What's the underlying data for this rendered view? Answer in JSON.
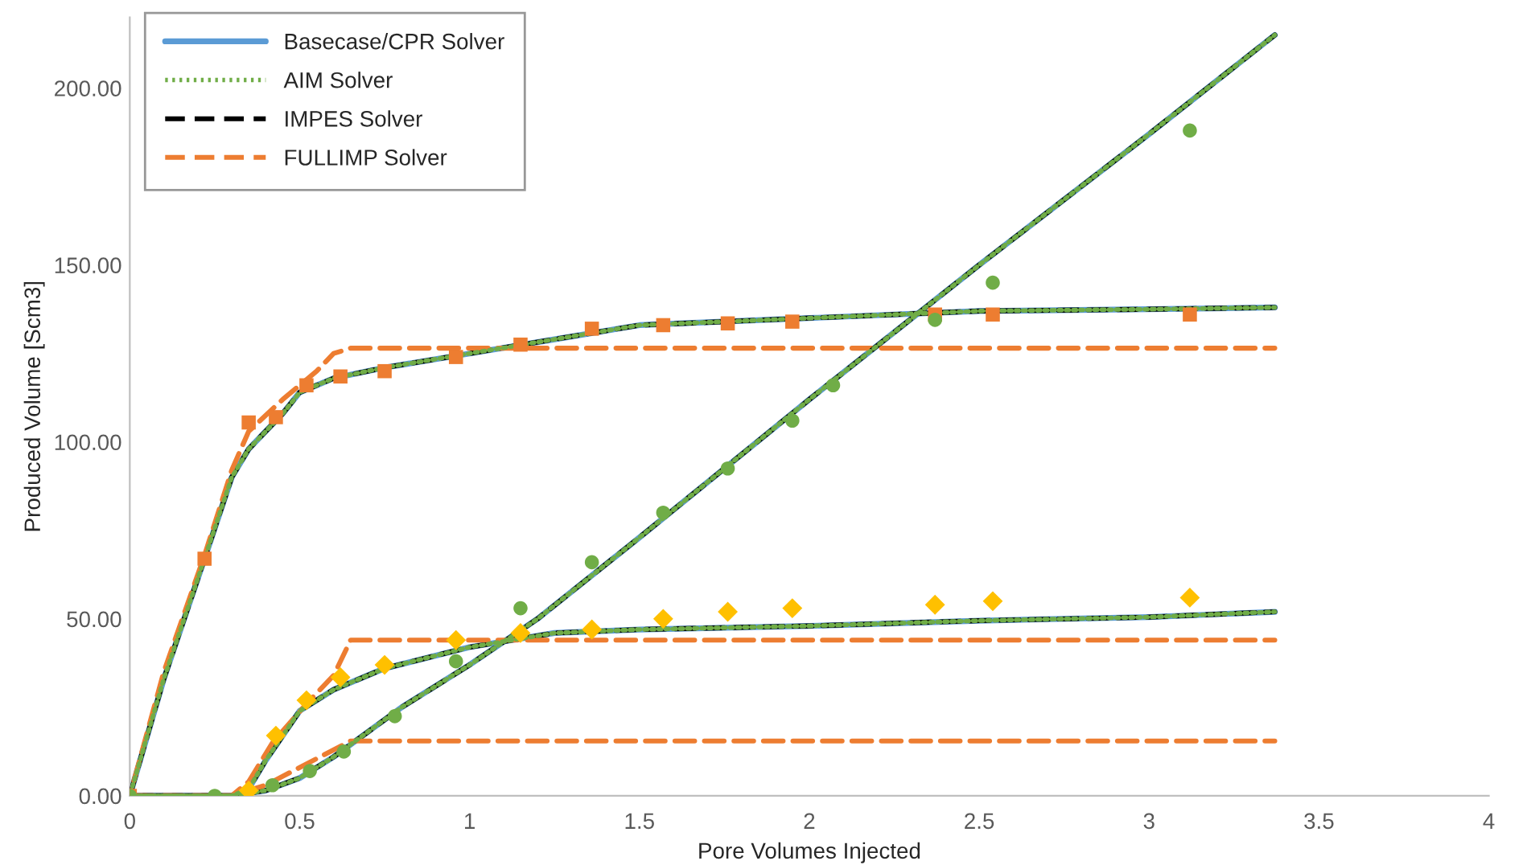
{
  "chart_data": {
    "type": "line",
    "xlabel": "Pore Volumes Injected",
    "ylabel": "Produced Volume [Scm3]",
    "xlim": [
      0,
      4
    ],
    "xticks": [
      0,
      0.5,
      1,
      1.5,
      2,
      2.5,
      3,
      3.5,
      4
    ],
    "ylim": [
      0,
      220
    ],
    "yticks": [
      {
        "value": 0,
        "label": "0.00"
      },
      {
        "value": 50,
        "label": "50.00"
      },
      {
        "value": 100,
        "label": "100.00"
      },
      {
        "value": 150,
        "label": "150.00"
      },
      {
        "value": 200,
        "label": "200.00"
      }
    ],
    "grid": false,
    "legend": "top left",
    "series": [
      {
        "name": "Basecase/CPR Solver",
        "line_style": "solid",
        "color": "#5b9bd5",
        "x": [
          0,
          0.1,
          0.22,
          0.3,
          0.35,
          0.45,
          0.5,
          0.6,
          0.75,
          1.0,
          1.25,
          1.5,
          2.0,
          2.5,
          3.0,
          3.37
        ],
        "values": [
          0,
          33,
          67,
          90,
          98,
          108,
          114,
          118,
          121,
          125,
          129,
          133,
          135,
          137,
          137.5,
          138
        ]
      },
      {
        "name": "AIM Solver",
        "line_style": "dotted",
        "color": "#70ad47",
        "x": [
          0,
          0.1,
          0.22,
          0.3,
          0.35,
          0.45,
          0.5,
          0.6,
          0.75,
          1.0,
          1.25,
          1.5,
          2.0,
          2.5,
          3.0,
          3.37
        ],
        "values": [
          0,
          33,
          67,
          90,
          98,
          108,
          114,
          118,
          121,
          125,
          129,
          133,
          135,
          137,
          137.5,
          138
        ]
      },
      {
        "name": "IMPES Solver",
        "line_style": "dashed",
        "color": "#000000",
        "x": [
          0,
          0.1,
          0.22,
          0.3,
          0.35,
          0.45,
          0.5,
          0.6,
          0.75,
          1.0,
          1.25,
          1.5,
          2.0,
          2.5,
          3.0,
          3.37
        ],
        "values": [
          0,
          33,
          67,
          90,
          98,
          108,
          114,
          118,
          121,
          125,
          129,
          133,
          135,
          137,
          137.5,
          138
        ]
      },
      {
        "name": "FULLIMP Solver",
        "line_style": "dashed",
        "color": "#ed7d31",
        "x": [
          0,
          0.1,
          0.22,
          0.3,
          0.35,
          0.45,
          0.55,
          0.6,
          0.65,
          3.37
        ],
        "values": [
          0,
          35,
          68,
          92,
          103,
          112,
          120,
          125,
          126.5,
          126.5
        ]
      },
      {
        "type": "line",
        "line_style": "solid",
        "color": "#5b9bd5",
        "x": [
          0,
          0.3,
          0.4,
          0.5,
          0.6,
          0.7,
          0.8,
          1.0,
          1.2,
          1.5,
          2.0,
          2.5,
          3.0,
          3.37
        ],
        "values": [
          0,
          0,
          1.5,
          5,
          11,
          18,
          25,
          37,
          50,
          73,
          112,
          150,
          187,
          215
        ]
      },
      {
        "type": "line",
        "line_style": "dotted",
        "color": "#70ad47",
        "x": [
          0,
          0.3,
          0.4,
          0.5,
          0.6,
          0.7,
          0.8,
          1.0,
          1.2,
          1.5,
          2.0,
          2.5,
          3.0,
          3.37
        ],
        "values": [
          0,
          0,
          1.5,
          5,
          11,
          18,
          25,
          37,
          50,
          73,
          112,
          150,
          187,
          215
        ]
      },
      {
        "type": "line",
        "line_style": "dashed",
        "color": "#000000",
        "x": [
          0,
          0.3,
          0.4,
          0.5,
          0.6,
          0.7,
          0.8,
          1.0,
          1.2,
          1.5,
          2.0,
          2.5,
          3.0,
          3.37
        ],
        "values": [
          0,
          0,
          1.5,
          5,
          11,
          18,
          25,
          37,
          50,
          73,
          112,
          150,
          187,
          215
        ]
      },
      {
        "type": "line",
        "line_style": "dashed",
        "color": "#ed7d31",
        "x": [
          0,
          0.3,
          0.4,
          0.5,
          0.6,
          0.65,
          3.37
        ],
        "values": [
          0,
          0,
          3,
          8,
          13,
          15.5,
          15.5
        ]
      },
      {
        "type": "line",
        "line_style": "solid",
        "color": "#5b9bd5",
        "x": [
          0,
          0.3,
          0.35,
          0.4,
          0.5,
          0.6,
          0.75,
          1.0,
          1.25,
          1.5,
          2.0,
          2.5,
          3.0,
          3.37
        ],
        "values": [
          0,
          0,
          2,
          10,
          24,
          30,
          36,
          42,
          46,
          47,
          48,
          49.5,
          50.5,
          52
        ]
      },
      {
        "type": "line",
        "line_style": "dotted",
        "color": "#70ad47",
        "x": [
          0,
          0.3,
          0.35,
          0.4,
          0.5,
          0.6,
          0.75,
          1.0,
          1.25,
          1.5,
          2.0,
          2.5,
          3.0,
          3.37
        ],
        "values": [
          0,
          0,
          2,
          10,
          24,
          30,
          36,
          42,
          46,
          47,
          48,
          49.5,
          50.5,
          52
        ]
      },
      {
        "type": "line",
        "line_style": "dashed",
        "color": "#000000",
        "x": [
          0,
          0.3,
          0.35,
          0.4,
          0.5,
          0.6,
          0.75,
          1.0,
          1.25,
          1.5,
          2.0,
          2.5,
          3.0,
          3.37
        ],
        "values": [
          0,
          0,
          2,
          10,
          24,
          30,
          36,
          42,
          46,
          47,
          48,
          49.5,
          50.5,
          52
        ]
      },
      {
        "type": "line",
        "line_style": "dashed",
        "color": "#ed7d31",
        "x": [
          0,
          0.3,
          0.35,
          0.42,
          0.52,
          0.6,
          0.65,
          3.37
        ],
        "values": [
          0,
          0,
          4,
          15,
          26,
          34,
          44,
          44
        ]
      },
      {
        "type": "scatter",
        "marker": "square",
        "color": "#ed7d31",
        "x": [
          0,
          0.22,
          0.35,
          0.43,
          0.52,
          0.62,
          0.75,
          0.96,
          1.15,
          1.36,
          1.57,
          1.76,
          1.95,
          2.37,
          2.54,
          3.12
        ],
        "values": [
          0,
          67,
          105.5,
          107,
          116,
          118.5,
          120,
          124,
          127.5,
          132,
          133,
          133.5,
          134,
          136,
          136,
          136
        ]
      },
      {
        "type": "scatter",
        "marker": "circle",
        "color": "#70ad47",
        "x": [
          0,
          0.25,
          0.42,
          0.53,
          0.63,
          0.78,
          0.96,
          1.15,
          1.36,
          1.57,
          1.76,
          1.95,
          2.07,
          2.37,
          2.54,
          3.12
        ],
        "values": [
          0,
          0,
          3,
          7,
          12.5,
          22.5,
          38,
          53,
          66,
          80,
          92.5,
          106,
          116,
          134.5,
          145,
          188
        ]
      },
      {
        "type": "scatter",
        "marker": "diamond",
        "color": "#ffc000",
        "x": [
          0.35,
          0.43,
          0.52,
          0.62,
          0.75,
          0.96,
          1.15,
          1.36,
          1.57,
          1.76,
          1.95,
          2.37,
          2.54,
          3.12
        ],
        "values": [
          1.5,
          17,
          27,
          33.5,
          37,
          44,
          46,
          47,
          50,
          52,
          53,
          54,
          55,
          56
        ]
      }
    ]
  }
}
